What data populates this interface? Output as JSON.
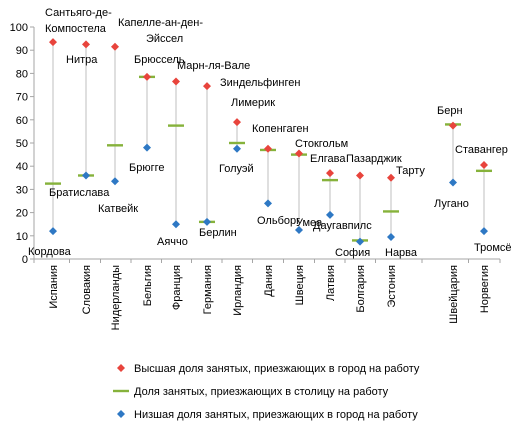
{
  "chart_data": {
    "type": "scatter",
    "ylim": [
      0,
      100
    ],
    "yticks": [
      0,
      10,
      20,
      30,
      40,
      50,
      60,
      70,
      80,
      90,
      100
    ],
    "grid": false,
    "legend_position": "bottom",
    "colors": {
      "high": "#e8443c",
      "capital": "#86b23b",
      "low": "#2e78c4",
      "line": "#bfbfbf",
      "axis": "#a6a6a6"
    },
    "categories": [
      "Испания",
      "Словакия",
      "Нидерланды",
      "Бельгия",
      "Франция",
      "Германия",
      "Ирландия",
      "Дания",
      "Швеция",
      "Латвия",
      "Болгария",
      "Эстония",
      "Швейцария",
      "Норвегия"
    ],
    "series": [
      {
        "name": "Высшая доля занятых, приезжающих в город на работу",
        "marker": "diamond",
        "values": [
          93.5,
          92.5,
          91.5,
          78.5,
          76.5,
          74.5,
          59,
          47.5,
          45.5,
          37,
          36,
          35,
          57.5,
          40.5
        ]
      },
      {
        "name": "Доля занятых, приезжающих в столицу на работу",
        "marker": "dash",
        "values": [
          32.5,
          36,
          49,
          78.5,
          57.5,
          16,
          50,
          47,
          45,
          34,
          8,
          20.5,
          58,
          38
        ]
      },
      {
        "name": "Низшая доля занятых, приезжающих в город на работу",
        "marker": "diamond",
        "values": [
          12,
          36,
          33.5,
          48,
          15,
          16,
          47.5,
          24,
          12.5,
          19,
          7.5,
          9.5,
          33,
          12
        ]
      }
    ],
    "annotations": [
      {
        "text": "Сантьяго-де-",
        "series": "high",
        "category": 0
      },
      {
        "text": "Компостела",
        "series": "high",
        "category": 0
      },
      {
        "text": "Нитра",
        "series": "high",
        "category": 1
      },
      {
        "text": "Капелле-ан-ден-",
        "series": "high",
        "category": 2
      },
      {
        "text": "Эйссел",
        "series": "high",
        "category": 2
      },
      {
        "text": "Брюссель",
        "series": "high",
        "category": 3
      },
      {
        "text": "Марн-ля-Вале",
        "series": "high",
        "category": 4
      },
      {
        "text": "Зиндельфинген",
        "series": "high",
        "category": 5
      },
      {
        "text": "Лимерик",
        "series": "high",
        "category": 6
      },
      {
        "text": "Копенгаген",
        "series": "high",
        "category": 7
      },
      {
        "text": "Стокгольм",
        "series": "high",
        "category": 8
      },
      {
        "text": "Елгава",
        "series": "high",
        "category": 9
      },
      {
        "text": "Пазарджик",
        "series": "high",
        "category": 10
      },
      {
        "text": "Тарту",
        "series": "high",
        "category": 11
      },
      {
        "text": "Берн",
        "series": "high",
        "category": 12
      },
      {
        "text": "Ставангер",
        "series": "high",
        "category": 13
      },
      {
        "text": "Кордова",
        "series": "low",
        "category": 0
      },
      {
        "text": "Братиславa",
        "series": "capital",
        "category": 1
      },
      {
        "text": "Катвейк",
        "series": "low",
        "category": 2
      },
      {
        "text": "Брюгге",
        "series": "low",
        "category": 3
      },
      {
        "text": "Аяччо",
        "series": "low",
        "category": 4
      },
      {
        "text": "Берлин",
        "series": "capital",
        "category": 5
      },
      {
        "text": "Голуэй",
        "series": "low",
        "category": 6
      },
      {
        "text": "Ольборг",
        "series": "low",
        "category": 7
      },
      {
        "text": "Умеа",
        "series": "low",
        "category": 8
      },
      {
        "text": "Даугавпилс",
        "series": "low",
        "category": 9
      },
      {
        "text": "София",
        "series": "capital",
        "category": 10
      },
      {
        "text": "Нарва",
        "series": "low",
        "category": 11
      },
      {
        "text": "Лугано",
        "series": "low",
        "category": 12
      },
      {
        "text": "Тромсё",
        "series": "low",
        "category": 13
      }
    ]
  }
}
